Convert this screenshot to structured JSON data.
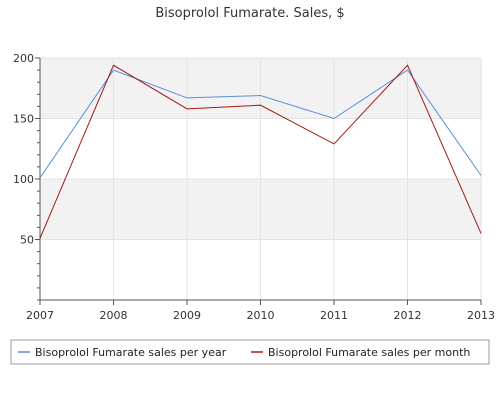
{
  "chart_data": {
    "type": "line",
    "title": "Bisoprolol Fumarate. Sales, $",
    "x": [
      "2007",
      "2008",
      "2009",
      "2010",
      "2011",
      "2012",
      "2013"
    ],
    "ylim": [
      0,
      200
    ],
    "yticks": [
      50,
      100,
      150,
      200
    ],
    "grid": true,
    "legend_position": "bottom",
    "series": [
      {
        "name": "Bisoprolol Fumarate sales per year",
        "color": "#5b8fd6",
        "values": [
          101,
          190,
          167,
          169,
          150,
          190,
          103
        ]
      },
      {
        "name": "Bisoprolol Fumarate sales per month",
        "color": "#a31a1a",
        "values": [
          51,
          194,
          158,
          161,
          129,
          194,
          55
        ]
      }
    ]
  }
}
